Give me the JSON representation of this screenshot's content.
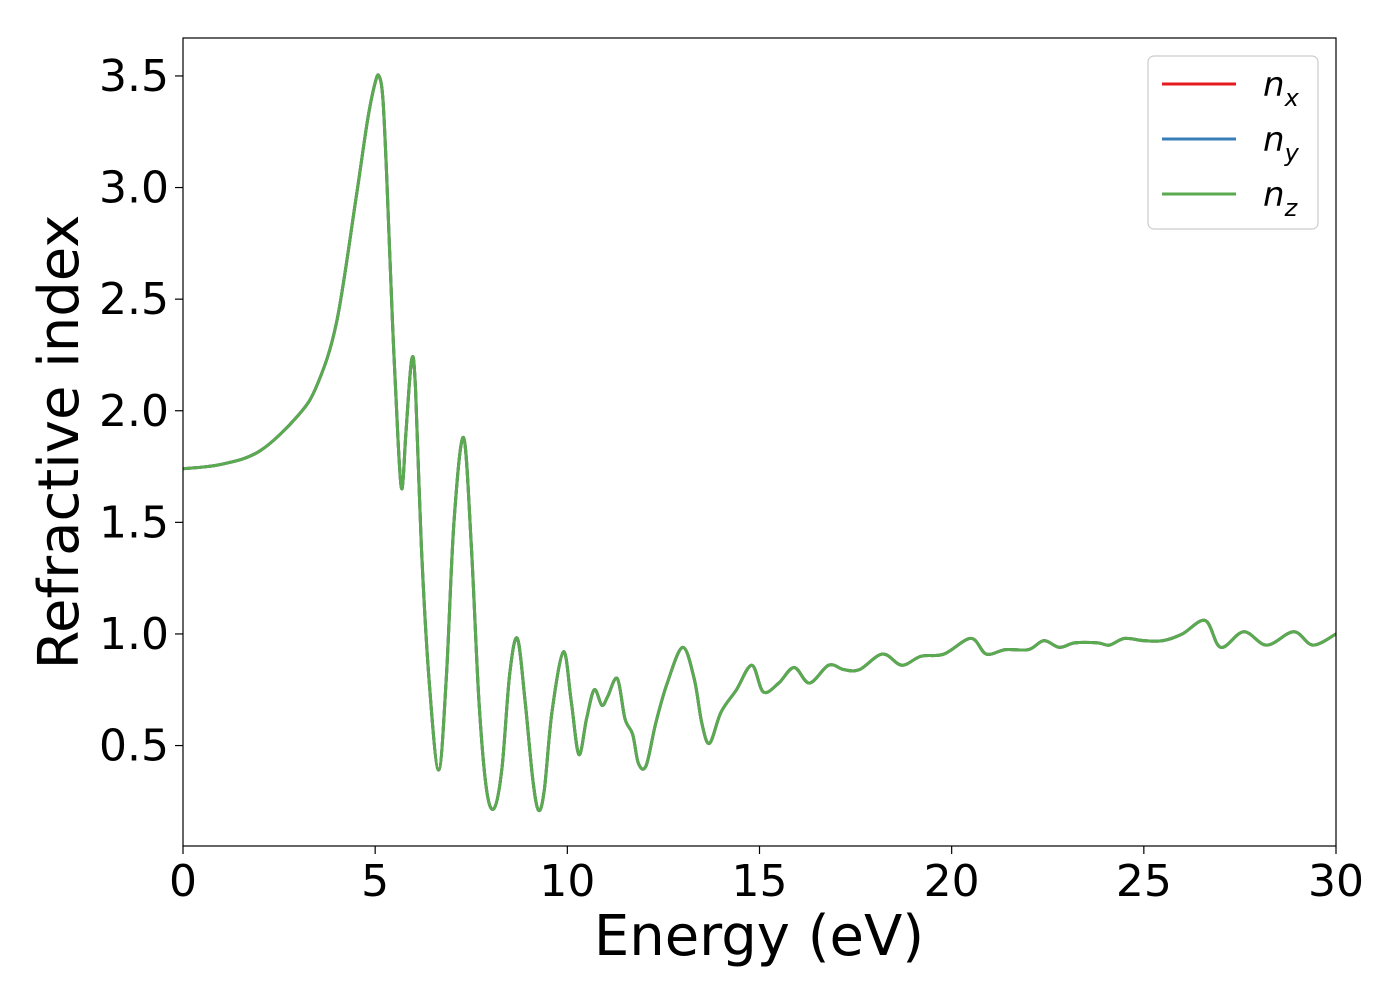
{
  "chart_data": {
    "type": "line",
    "title": "",
    "xlabel": "Energy (eV)",
    "ylabel": "Refractive index",
    "xlim": [
      0,
      30
    ],
    "ylim": [
      0.05,
      3.67
    ],
    "xticks": [
      0,
      5,
      10,
      15,
      20,
      25,
      30
    ],
    "yticks": [
      0.5,
      1.0,
      1.5,
      2.0,
      2.5,
      3.0,
      3.5
    ],
    "xtick_labels": [
      "0",
      "5",
      "10",
      "15",
      "20",
      "25",
      "30"
    ],
    "ytick_labels": [
      "0.5",
      "1.0",
      "1.5",
      "2.0",
      "2.5",
      "3.0",
      "3.5"
    ],
    "grid": false,
    "legend_position": "top-right",
    "series": [
      {
        "name": "n",
        "subscript": "x",
        "color": "#e41a1c"
      },
      {
        "name": "n",
        "subscript": "y",
        "color": "#377eb8"
      },
      {
        "name": "n",
        "subscript": "z",
        "color": "#5aaa50"
      }
    ],
    "x": [
      0,
      1,
      2,
      3,
      3.5,
      4,
      4.5,
      4.8,
      5.0,
      5.1,
      5.2,
      5.3,
      5.45,
      5.6,
      5.7,
      5.8,
      5.95,
      6.05,
      6.2,
      6.4,
      6.65,
      6.85,
      7.05,
      7.3,
      7.5,
      7.7,
      7.9,
      8.1,
      8.3,
      8.5,
      8.7,
      8.9,
      9.1,
      9.25,
      9.4,
      9.6,
      9.9,
      10.1,
      10.3,
      10.5,
      10.7,
      10.9,
      11.05,
      11.3,
      11.5,
      11.7,
      11.85,
      12.05,
      12.3,
      12.6,
      13.0,
      13.3,
      13.5,
      13.7,
      14.0,
      14.4,
      14.8,
      15.1,
      15.5,
      15.9,
      16.3,
      16.8,
      17.2,
      17.6,
      18.2,
      18.7,
      19.2,
      19.8,
      20.5,
      20.9,
      21.4,
      22.0,
      22.4,
      22.8,
      23.2,
      23.8,
      24.1,
      24.5,
      25.0,
      25.5,
      26.0,
      26.6,
      27.0,
      27.6,
      28.2,
      28.9,
      29.4,
      30.0
    ],
    "y_x": [
      1.74,
      1.76,
      1.82,
      1.98,
      2.12,
      2.4,
      2.95,
      3.3,
      3.47,
      3.5,
      3.4,
      3.05,
      2.4,
      1.85,
      1.65,
      1.9,
      2.23,
      2.1,
      1.4,
      0.8,
      0.39,
      0.8,
      1.5,
      1.88,
      1.4,
      0.7,
      0.3,
      0.22,
      0.4,
      0.82,
      0.98,
      0.7,
      0.35,
      0.21,
      0.3,
      0.65,
      0.92,
      0.7,
      0.46,
      0.62,
      0.75,
      0.68,
      0.72,
      0.8,
      0.62,
      0.55,
      0.42,
      0.41,
      0.6,
      0.78,
      0.94,
      0.8,
      0.6,
      0.51,
      0.65,
      0.75,
      0.86,
      0.74,
      0.78,
      0.85,
      0.78,
      0.86,
      0.84,
      0.84,
      0.91,
      0.86,
      0.9,
      0.91,
      0.98,
      0.91,
      0.93,
      0.93,
      0.97,
      0.94,
      0.96,
      0.96,
      0.95,
      0.98,
      0.97,
      0.97,
      1.0,
      1.06,
      0.94,
      1.01,
      0.95,
      1.01,
      0.95,
      1.0
    ],
    "y_y": [
      1.74,
      1.76,
      1.82,
      1.98,
      2.12,
      2.4,
      2.95,
      3.3,
      3.47,
      3.5,
      3.4,
      3.05,
      2.4,
      1.85,
      1.65,
      1.9,
      2.23,
      2.1,
      1.4,
      0.8,
      0.39,
      0.8,
      1.5,
      1.88,
      1.4,
      0.7,
      0.3,
      0.22,
      0.4,
      0.82,
      0.98,
      0.7,
      0.35,
      0.21,
      0.3,
      0.65,
      0.92,
      0.7,
      0.46,
      0.62,
      0.75,
      0.68,
      0.72,
      0.8,
      0.62,
      0.55,
      0.42,
      0.41,
      0.6,
      0.78,
      0.94,
      0.8,
      0.6,
      0.51,
      0.65,
      0.75,
      0.86,
      0.74,
      0.78,
      0.85,
      0.78,
      0.86,
      0.84,
      0.84,
      0.91,
      0.86,
      0.9,
      0.91,
      0.98,
      0.91,
      0.93,
      0.93,
      0.97,
      0.94,
      0.96,
      0.96,
      0.95,
      0.98,
      0.97,
      0.97,
      1.0,
      1.06,
      0.94,
      1.01,
      0.95,
      1.01,
      0.95,
      1.0
    ],
    "y_z": [
      1.74,
      1.76,
      1.82,
      1.98,
      2.12,
      2.4,
      2.95,
      3.3,
      3.47,
      3.5,
      3.4,
      3.05,
      2.4,
      1.85,
      1.65,
      1.9,
      2.23,
      2.1,
      1.4,
      0.8,
      0.39,
      0.8,
      1.5,
      1.88,
      1.4,
      0.7,
      0.3,
      0.22,
      0.4,
      0.82,
      0.98,
      0.7,
      0.35,
      0.21,
      0.3,
      0.65,
      0.92,
      0.7,
      0.46,
      0.62,
      0.75,
      0.68,
      0.72,
      0.8,
      0.62,
      0.55,
      0.42,
      0.41,
      0.6,
      0.78,
      0.94,
      0.8,
      0.6,
      0.51,
      0.65,
      0.75,
      0.86,
      0.74,
      0.78,
      0.85,
      0.78,
      0.86,
      0.84,
      0.84,
      0.91,
      0.86,
      0.9,
      0.91,
      0.98,
      0.91,
      0.93,
      0.93,
      0.97,
      0.94,
      0.96,
      0.96,
      0.95,
      0.98,
      0.97,
      0.97,
      1.0,
      1.06,
      0.94,
      1.01,
      0.95,
      1.01,
      0.95,
      1.0
    ]
  }
}
